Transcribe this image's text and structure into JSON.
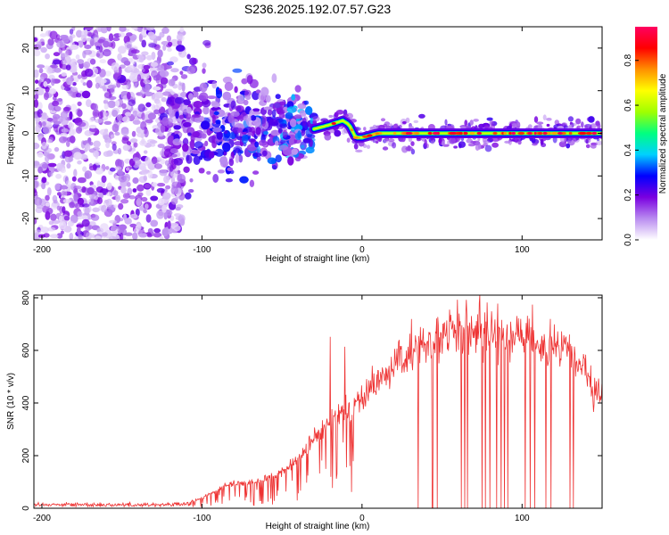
{
  "title": "S236.2025.192.07.57.G23",
  "colors": {
    "signal": "#ee3333",
    "frame": "#000000"
  },
  "chart_data": [
    {
      "type": "heatmap",
      "xlabel": "Height of straight line (km)",
      "ylabel": "Frequency (Hz)",
      "xlim": [
        -205,
        150
      ],
      "ylim": [
        -25,
        25
      ],
      "x_ticks": [
        -200,
        -100,
        0,
        100
      ],
      "y_ticks": [
        -20,
        -10,
        0,
        10,
        20
      ],
      "colorbar": {
        "label": "Normalized spectral amplitude",
        "range": [
          0,
          0.95
        ],
        "ticks": [
          0.0,
          0.2,
          0.4,
          0.6,
          0.8
        ],
        "tick_labels": [
          "0.0",
          "0.2",
          "0.4",
          "0.6",
          "0.8"
        ],
        "colormap": [
          "#ffffff",
          "#b98bf0",
          "#7a00e0",
          "#0000ff",
          "#00d0ff",
          "#00ff80",
          "#a0ff00",
          "#ffff00",
          "#ff9000",
          "#ff0000",
          "#ff0060"
        ]
      },
      "ridge": [
        {
          "x": -30,
          "y": 1
        },
        {
          "x": -20,
          "y": 2
        },
        {
          "x": -12,
          "y": 3
        },
        {
          "x": -8,
          "y": 2
        },
        {
          "x": -4,
          "y": -1
        },
        {
          "x": 0,
          "y": -1
        },
        {
          "x": 10,
          "y": 0
        },
        {
          "x": 50,
          "y": 0
        },
        {
          "x": 100,
          "y": 0
        },
        {
          "x": 150,
          "y": 0
        }
      ],
      "grid": false
    },
    {
      "type": "line",
      "xlabel": "Height of straight line (km)",
      "ylabel": "SNR (10 * v/v)",
      "xlim": [
        -205,
        150
      ],
      "ylim": [
        0,
        810
      ],
      "x_ticks": [
        -200,
        -100,
        0,
        100
      ],
      "y_ticks": [
        0,
        200,
        400,
        600,
        800
      ],
      "series": [
        {
          "x": [
            -205,
            -180,
            -150,
            -120,
            -110,
            -100,
            -90,
            -80,
            -70,
            -60,
            -50,
            -40,
            -30,
            -25,
            -20,
            -15,
            -10,
            -5,
            0,
            10,
            20,
            30,
            40,
            50,
            60,
            70,
            80,
            90,
            100,
            110,
            120,
            130,
            135,
            140,
            145,
            150
          ],
          "y": [
            15,
            14,
            13,
            14,
            15,
            40,
            70,
            95,
            100,
            110,
            135,
            190,
            260,
            300,
            340,
            360,
            380,
            390,
            420,
            480,
            540,
            590,
            630,
            660,
            670,
            675,
            675,
            670,
            650,
            625,
            605,
            590,
            550,
            510,
            420,
            440
          ]
        }
      ],
      "grid": false
    }
  ]
}
